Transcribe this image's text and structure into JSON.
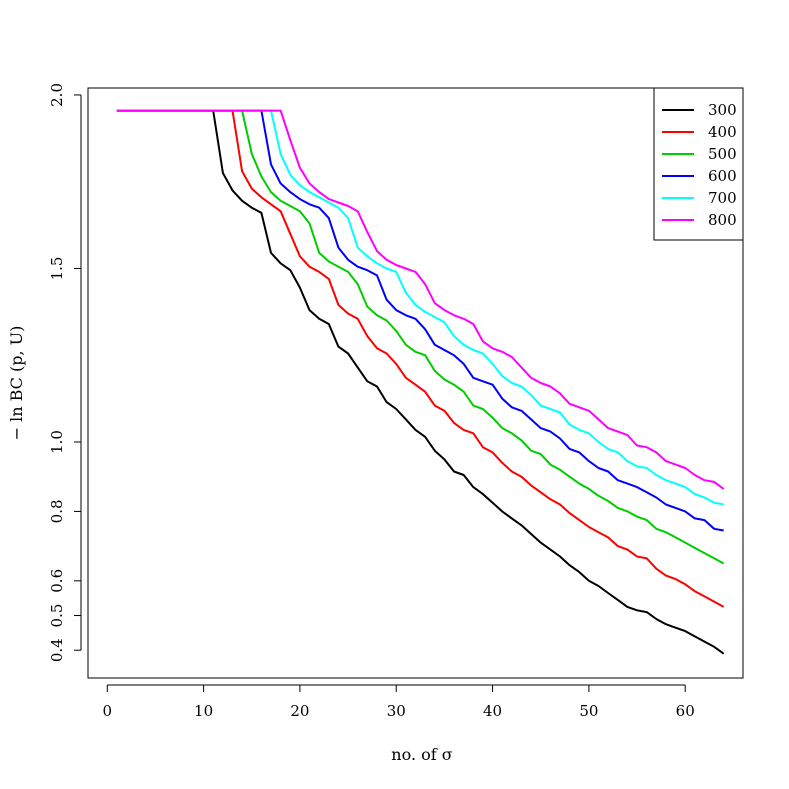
{
  "chart_data": {
    "type": "line",
    "title": "",
    "xlabel": "no. of σ",
    "ylabel": "− ln BC (p, U)",
    "xlim": [
      -2,
      66
    ],
    "ylim": [
      0.32,
      2.02
    ],
    "x_ticks": [
      0,
      10,
      20,
      30,
      40,
      50,
      60
    ],
    "x_tick_labels": [
      "0",
      "10",
      "20",
      "30",
      "40",
      "50",
      "60"
    ],
    "y_ticks": [
      0.4,
      0.5,
      0.6,
      0.8,
      1.0,
      1.5,
      2.0
    ],
    "y_tick_labels": [
      "0.4",
      "0.5",
      "0.6",
      "0.8",
      "1.0",
      "1.5",
      "2.0"
    ],
    "grid": false,
    "legend_position": "top-right",
    "series": [
      {
        "name": "300",
        "color": "#000000",
        "points": [
          [
            1,
            1.955
          ],
          [
            11,
            1.955
          ],
          [
            12,
            1.775
          ],
          [
            13,
            1.725
          ],
          [
            14,
            1.695
          ],
          [
            15,
            1.675
          ],
          [
            16,
            1.66
          ],
          [
            17,
            1.545
          ],
          [
            18,
            1.515
          ],
          [
            19,
            1.495
          ],
          [
            20,
            1.445
          ],
          [
            21,
            1.38
          ],
          [
            22,
            1.355
          ],
          [
            23,
            1.34
          ],
          [
            24,
            1.275
          ],
          [
            25,
            1.255
          ],
          [
            26,
            1.215
          ],
          [
            27,
            1.175
          ],
          [
            28,
            1.16
          ],
          [
            29,
            1.115
          ],
          [
            30,
            1.095
          ],
          [
            31,
            1.065
          ],
          [
            32,
            1.035
          ],
          [
            33,
            1.015
          ],
          [
            34,
            0.975
          ],
          [
            35,
            0.95
          ],
          [
            36,
            0.915
          ],
          [
            37,
            0.905
          ],
          [
            38,
            0.87
          ],
          [
            39,
            0.85
          ],
          [
            40,
            0.825
          ],
          [
            41,
            0.8
          ],
          [
            42,
            0.78
          ],
          [
            43,
            0.76
          ],
          [
            44,
            0.735
          ],
          [
            45,
            0.71
          ],
          [
            46,
            0.69
          ],
          [
            47,
            0.67
          ],
          [
            48,
            0.645
          ],
          [
            49,
            0.625
          ],
          [
            50,
            0.6
          ],
          [
            51,
            0.585
          ],
          [
            52,
            0.565
          ],
          [
            53,
            0.545
          ],
          [
            54,
            0.525
          ],
          [
            55,
            0.515
          ],
          [
            56,
            0.51
          ],
          [
            57,
            0.49
          ],
          [
            58,
            0.475
          ],
          [
            59,
            0.465
          ],
          [
            60,
            0.455
          ],
          [
            61,
            0.44
          ],
          [
            62,
            0.425
          ],
          [
            63,
            0.41
          ],
          [
            64,
            0.39
          ]
        ]
      },
      {
        "name": "400",
        "color": "#ff0000",
        "points": [
          [
            1,
            1.955
          ],
          [
            13,
            1.955
          ],
          [
            14,
            1.78
          ],
          [
            15,
            1.73
          ],
          [
            16,
            1.705
          ],
          [
            17,
            1.685
          ],
          [
            18,
            1.665
          ],
          [
            19,
            1.6
          ],
          [
            20,
            1.535
          ],
          [
            21,
            1.505
          ],
          [
            22,
            1.49
          ],
          [
            23,
            1.47
          ],
          [
            24,
            1.395
          ],
          [
            25,
            1.37
          ],
          [
            26,
            1.355
          ],
          [
            27,
            1.305
          ],
          [
            28,
            1.27
          ],
          [
            29,
            1.255
          ],
          [
            30,
            1.225
          ],
          [
            31,
            1.185
          ],
          [
            32,
            1.165
          ],
          [
            33,
            1.145
          ],
          [
            34,
            1.105
          ],
          [
            35,
            1.09
          ],
          [
            36,
            1.055
          ],
          [
            37,
            1.035
          ],
          [
            38,
            1.025
          ],
          [
            39,
            0.985
          ],
          [
            40,
            0.97
          ],
          [
            41,
            0.94
          ],
          [
            42,
            0.915
          ],
          [
            43,
            0.9
          ],
          [
            44,
            0.875
          ],
          [
            45,
            0.855
          ],
          [
            46,
            0.835
          ],
          [
            47,
            0.82
          ],
          [
            48,
            0.795
          ],
          [
            49,
            0.775
          ],
          [
            50,
            0.755
          ],
          [
            51,
            0.74
          ],
          [
            52,
            0.725
          ],
          [
            53,
            0.7
          ],
          [
            54,
            0.69
          ],
          [
            55,
            0.67
          ],
          [
            56,
            0.665
          ],
          [
            57,
            0.635
          ],
          [
            58,
            0.615
          ],
          [
            59,
            0.605
          ],
          [
            60,
            0.59
          ],
          [
            61,
            0.57
          ],
          [
            62,
            0.555
          ],
          [
            63,
            0.54
          ],
          [
            64,
            0.525
          ]
        ]
      },
      {
        "name": "500",
        "color": "#00cd00",
        "points": [
          [
            1,
            1.955
          ],
          [
            14,
            1.955
          ],
          [
            15,
            1.83
          ],
          [
            16,
            1.765
          ],
          [
            17,
            1.72
          ],
          [
            18,
            1.695
          ],
          [
            19,
            1.68
          ],
          [
            20,
            1.665
          ],
          [
            21,
            1.63
          ],
          [
            22,
            1.545
          ],
          [
            23,
            1.52
          ],
          [
            24,
            1.505
          ],
          [
            25,
            1.49
          ],
          [
            26,
            1.455
          ],
          [
            27,
            1.39
          ],
          [
            28,
            1.365
          ],
          [
            29,
            1.35
          ],
          [
            30,
            1.32
          ],
          [
            31,
            1.28
          ],
          [
            32,
            1.26
          ],
          [
            33,
            1.25
          ],
          [
            34,
            1.205
          ],
          [
            35,
            1.18
          ],
          [
            36,
            1.165
          ],
          [
            37,
            1.145
          ],
          [
            38,
            1.105
          ],
          [
            39,
            1.095
          ],
          [
            40,
            1.07
          ],
          [
            41,
            1.04
          ],
          [
            42,
            1.025
          ],
          [
            43,
            1.005
          ],
          [
            44,
            0.975
          ],
          [
            45,
            0.965
          ],
          [
            46,
            0.935
          ],
          [
            47,
            0.92
          ],
          [
            48,
            0.9
          ],
          [
            49,
            0.88
          ],
          [
            50,
            0.865
          ],
          [
            51,
            0.845
          ],
          [
            52,
            0.83
          ],
          [
            53,
            0.81
          ],
          [
            54,
            0.8
          ],
          [
            55,
            0.785
          ],
          [
            56,
            0.775
          ],
          [
            57,
            0.75
          ],
          [
            58,
            0.74
          ],
          [
            59,
            0.725
          ],
          [
            60,
            0.71
          ],
          [
            61,
            0.695
          ],
          [
            62,
            0.68
          ],
          [
            63,
            0.665
          ],
          [
            64,
            0.65
          ]
        ]
      },
      {
        "name": "600",
        "color": "#0000ff",
        "points": [
          [
            1,
            1.955
          ],
          [
            16,
            1.955
          ],
          [
            17,
            1.8
          ],
          [
            18,
            1.745
          ],
          [
            19,
            1.72
          ],
          [
            20,
            1.7
          ],
          [
            21,
            1.685
          ],
          [
            22,
            1.675
          ],
          [
            23,
            1.645
          ],
          [
            24,
            1.56
          ],
          [
            25,
            1.525
          ],
          [
            26,
            1.505
          ],
          [
            27,
            1.495
          ],
          [
            28,
            1.48
          ],
          [
            29,
            1.41
          ],
          [
            30,
            1.38
          ],
          [
            31,
            1.365
          ],
          [
            32,
            1.355
          ],
          [
            33,
            1.325
          ],
          [
            34,
            1.28
          ],
          [
            35,
            1.265
          ],
          [
            36,
            1.25
          ],
          [
            37,
            1.225
          ],
          [
            38,
            1.185
          ],
          [
            39,
            1.175
          ],
          [
            40,
            1.165
          ],
          [
            41,
            1.125
          ],
          [
            42,
            1.1
          ],
          [
            43,
            1.09
          ],
          [
            44,
            1.065
          ],
          [
            45,
            1.04
          ],
          [
            46,
            1.03
          ],
          [
            47,
            1.01
          ],
          [
            48,
            0.98
          ],
          [
            49,
            0.97
          ],
          [
            50,
            0.945
          ],
          [
            51,
            0.925
          ],
          [
            52,
            0.915
          ],
          [
            53,
            0.89
          ],
          [
            54,
            0.88
          ],
          [
            55,
            0.87
          ],
          [
            56,
            0.855
          ],
          [
            57,
            0.84
          ],
          [
            58,
            0.82
          ],
          [
            59,
            0.81
          ],
          [
            60,
            0.8
          ],
          [
            61,
            0.78
          ],
          [
            62,
            0.775
          ],
          [
            63,
            0.75
          ],
          [
            64,
            0.745
          ]
        ]
      },
      {
        "name": "700",
        "color": "#00ffff",
        "points": [
          [
            1,
            1.955
          ],
          [
            17,
            1.955
          ],
          [
            18,
            1.83
          ],
          [
            19,
            1.77
          ],
          [
            20,
            1.74
          ],
          [
            21,
            1.72
          ],
          [
            22,
            1.705
          ],
          [
            23,
            1.69
          ],
          [
            24,
            1.675
          ],
          [
            25,
            1.645
          ],
          [
            26,
            1.56
          ],
          [
            27,
            1.535
          ],
          [
            28,
            1.515
          ],
          [
            29,
            1.5
          ],
          [
            30,
            1.49
          ],
          [
            31,
            1.43
          ],
          [
            32,
            1.395
          ],
          [
            33,
            1.375
          ],
          [
            34,
            1.36
          ],
          [
            35,
            1.345
          ],
          [
            36,
            1.305
          ],
          [
            37,
            1.28
          ],
          [
            38,
            1.265
          ],
          [
            39,
            1.255
          ],
          [
            40,
            1.225
          ],
          [
            41,
            1.19
          ],
          [
            42,
            1.17
          ],
          [
            43,
            1.16
          ],
          [
            44,
            1.135
          ],
          [
            45,
            1.105
          ],
          [
            46,
            1.095
          ],
          [
            47,
            1.085
          ],
          [
            48,
            1.05
          ],
          [
            49,
            1.035
          ],
          [
            50,
            1.025
          ],
          [
            51,
            1.0
          ],
          [
            52,
            0.98
          ],
          [
            53,
            0.97
          ],
          [
            54,
            0.945
          ],
          [
            55,
            0.93
          ],
          [
            56,
            0.925
          ],
          [
            57,
            0.905
          ],
          [
            58,
            0.89
          ],
          [
            59,
            0.88
          ],
          [
            60,
            0.87
          ],
          [
            61,
            0.85
          ],
          [
            62,
            0.84
          ],
          [
            63,
            0.825
          ],
          [
            64,
            0.82
          ]
        ]
      },
      {
        "name": "800",
        "color": "#ff00ff",
        "points": [
          [
            1,
            1.955
          ],
          [
            18,
            1.955
          ],
          [
            19,
            1.87
          ],
          [
            20,
            1.79
          ],
          [
            21,
            1.745
          ],
          [
            22,
            1.72
          ],
          [
            23,
            1.7
          ],
          [
            24,
            1.69
          ],
          [
            25,
            1.68
          ],
          [
            26,
            1.665
          ],
          [
            27,
            1.605
          ],
          [
            28,
            1.55
          ],
          [
            29,
            1.525
          ],
          [
            30,
            1.51
          ],
          [
            31,
            1.5
          ],
          [
            32,
            1.49
          ],
          [
            33,
            1.455
          ],
          [
            34,
            1.4
          ],
          [
            35,
            1.38
          ],
          [
            36,
            1.365
          ],
          [
            37,
            1.355
          ],
          [
            38,
            1.34
          ],
          [
            39,
            1.29
          ],
          [
            40,
            1.27
          ],
          [
            41,
            1.26
          ],
          [
            42,
            1.245
          ],
          [
            43,
            1.215
          ],
          [
            44,
            1.185
          ],
          [
            45,
            1.17
          ],
          [
            46,
            1.16
          ],
          [
            47,
            1.14
          ],
          [
            48,
            1.11
          ],
          [
            49,
            1.1
          ],
          [
            50,
            1.09
          ],
          [
            51,
            1.065
          ],
          [
            52,
            1.04
          ],
          [
            53,
            1.03
          ],
          [
            54,
            1.02
          ],
          [
            55,
            0.99
          ],
          [
            56,
            0.985
          ],
          [
            57,
            0.97
          ],
          [
            58,
            0.945
          ],
          [
            59,
            0.935
          ],
          [
            60,
            0.925
          ],
          [
            61,
            0.905
          ],
          [
            62,
            0.89
          ],
          [
            63,
            0.885
          ],
          [
            64,
            0.865
          ]
        ]
      }
    ]
  }
}
